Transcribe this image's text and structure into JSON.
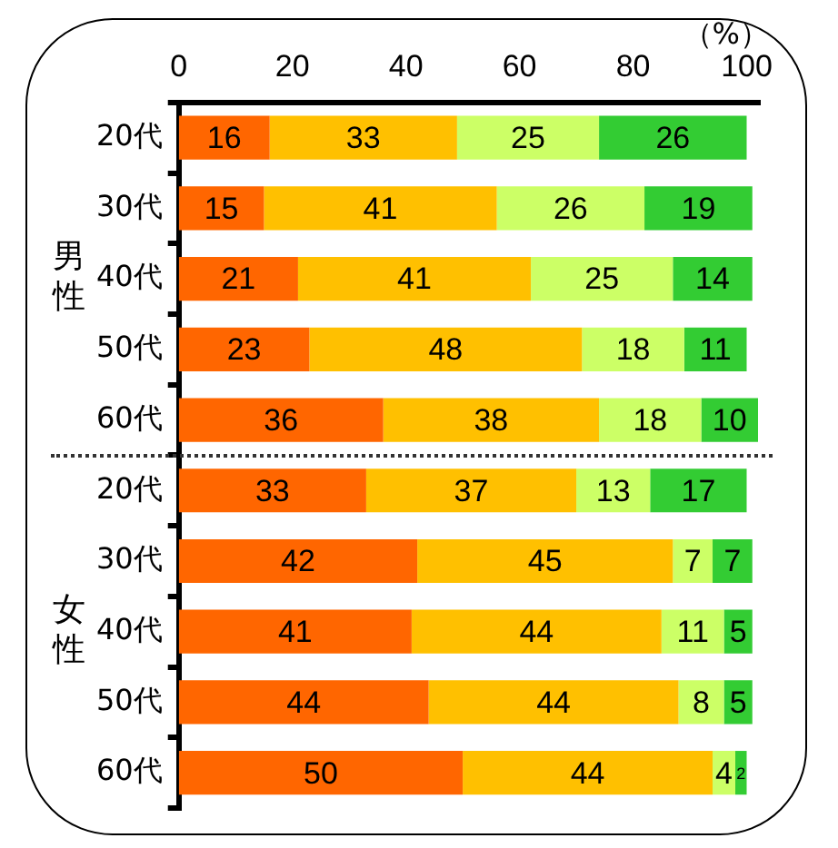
{
  "chart_data": {
    "type": "bar",
    "orientation": "horizontal",
    "stacked": true,
    "xlabel": "（%）",
    "annotations": [
      "男性",
      "女性"
    ],
    "categories": [
      "20代",
      "30代",
      "40代",
      "50代",
      "60代",
      "20代",
      "30代",
      "40代",
      "50代",
      "60代"
    ],
    "series": [
      {
        "color": "#ff6600",
        "values": [
          16,
          15,
          21,
          23,
          36,
          33,
          42,
          41,
          44,
          50
        ]
      },
      {
        "color": "#ffc000",
        "values": [
          33,
          41,
          41,
          48,
          38,
          37,
          45,
          44,
          44,
          44
        ]
      },
      {
        "color": "#ccff66",
        "values": [
          25,
          26,
          25,
          18,
          18,
          13,
          7,
          11,
          8,
          4
        ]
      },
      {
        "color": "#33cc33",
        "values": [
          26,
          19,
          14,
          11,
          10,
          17,
          7,
          5,
          5,
          2
        ]
      }
    ],
    "xlim": [
      0,
      102
    ],
    "xticks": [
      0,
      20,
      40,
      60,
      80,
      100
    ],
    "grid": false,
    "legend": false,
    "data_labels": true
  }
}
